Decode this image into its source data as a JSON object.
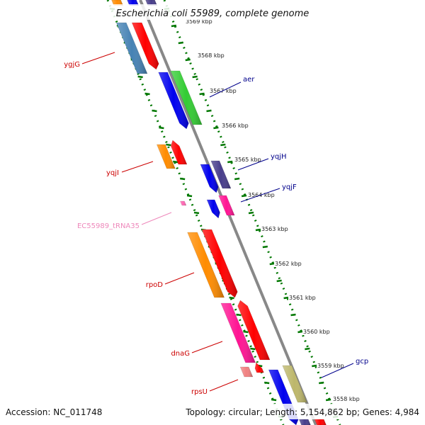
{
  "title": "Escherichia coli 55989, complete genome",
  "footer": {
    "accession": "Accession: NC_011748",
    "summary": "Topology: circular; Length: 5,154,862 bp; Genes: 4,984"
  },
  "ticks": [
    "3569 kbp",
    "3568 kbp",
    "3567 kbp",
    "3566 kbp",
    "3565 kbp",
    "3564 kbp",
    "3563 kbp",
    "3562 kbp",
    "3561 kbp",
    "3560 kbp",
    "3559 kbp",
    "3558 kbp"
  ],
  "gene_labels": [
    {
      "text": "ygjG",
      "color": "#cc0000"
    },
    {
      "text": "aer",
      "color": "#00008b"
    },
    {
      "text": "yqjH",
      "color": "#00008b"
    },
    {
      "text": "yqjI",
      "color": "#cc0000"
    },
    {
      "text": "yqjF",
      "color": "#00008b"
    },
    {
      "text": "EC55989_tRNA35",
      "color": "#ee88bb"
    },
    {
      "text": "rpoD",
      "color": "#cc0000"
    },
    {
      "text": "dnaG",
      "color": "#cc0000"
    },
    {
      "text": "rpsU",
      "color": "#cc0000"
    },
    {
      "text": "gcp",
      "color": "#00008b"
    }
  ],
  "colors": {
    "backbone": "#888888",
    "dotted_border": "#007700",
    "red": "#ff0000",
    "blue": "#0000ee",
    "steelblue": "#4682b4",
    "green": "#33cc33",
    "orange": "#ff8c00",
    "magenta": "#ff1493",
    "pink": "#ff69b4",
    "slate": "#483d8b",
    "khaki": "#bdb76b",
    "salmon": "#f08080"
  }
}
